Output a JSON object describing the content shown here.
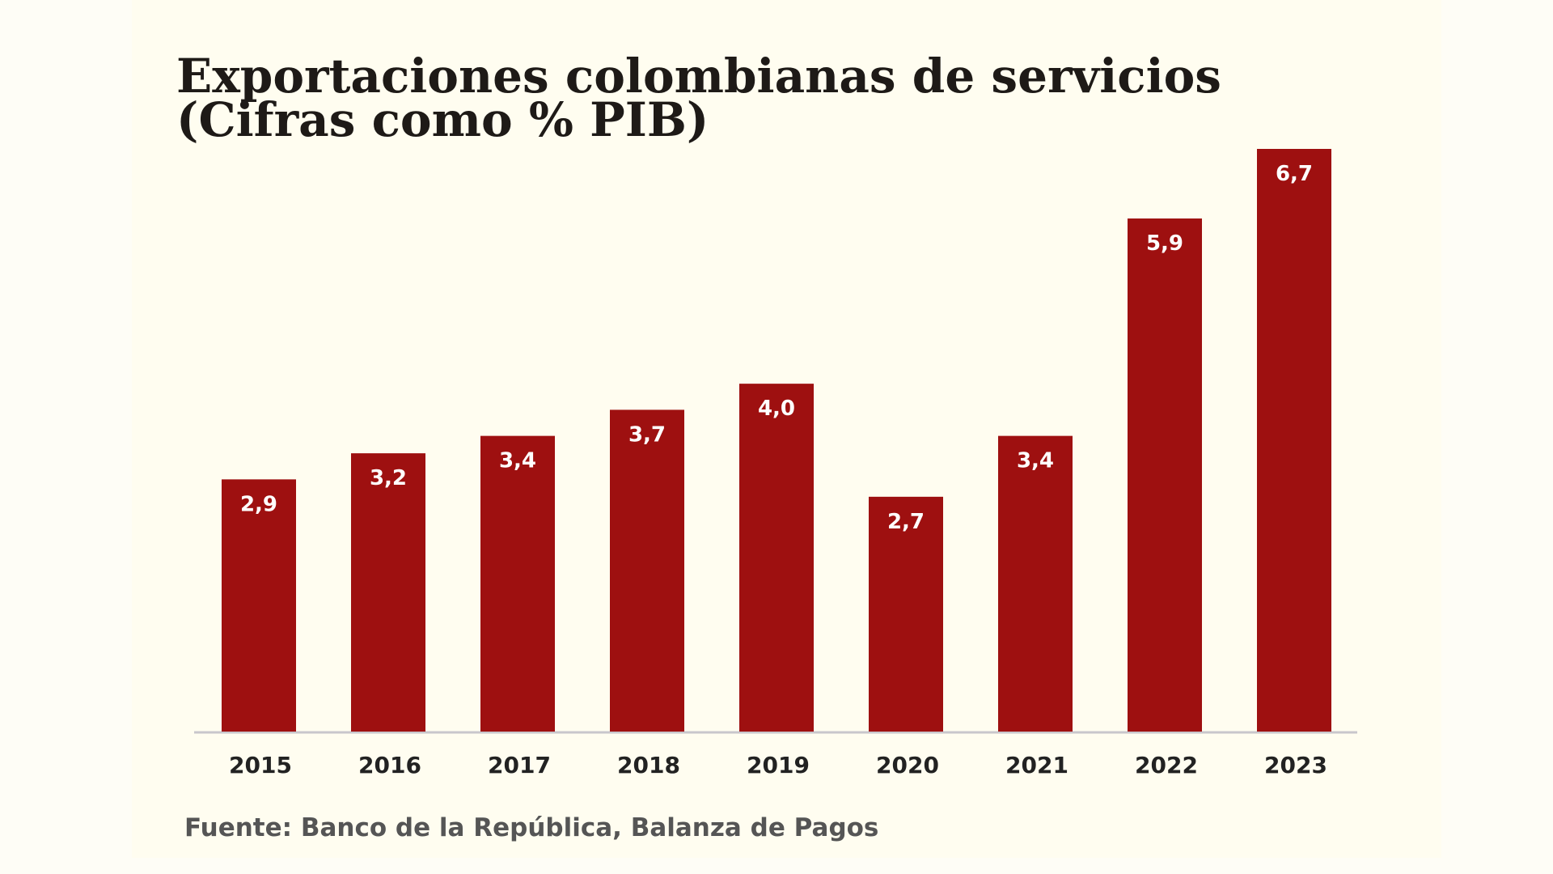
{
  "chart_data": {
    "type": "bar",
    "title": "Exportaciones colombianas de servicios",
    "subtitle": "(Cifras como % PIB)",
    "categories": [
      "2015",
      "2016",
      "2017",
      "2018",
      "2019",
      "2020",
      "2021",
      "2022",
      "2023"
    ],
    "values": [
      2.9,
      3.2,
      3.4,
      3.7,
      4.0,
      2.7,
      3.4,
      5.9,
      6.7
    ],
    "value_labels": [
      "2,9",
      "3,2",
      "3,4",
      "3,7",
      "4,0",
      "2,7",
      "3,4",
      "5,9",
      "6,7"
    ],
    "color": "#9e1010",
    "source": "Fuente: Banco de la República, Balanza de Pagos"
  }
}
